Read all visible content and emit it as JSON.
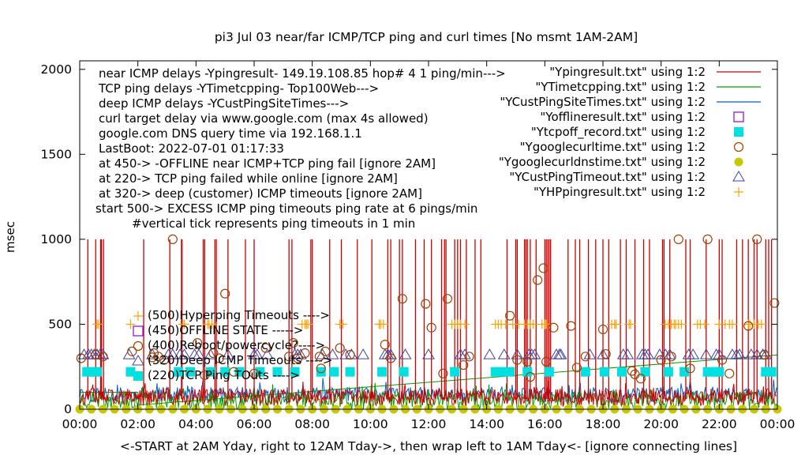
{
  "chart_data": {
    "type": "scatter",
    "title": "pi3 Jul 03  near/far ICMP/TCP ping and curl times [No msmt 1AM-2AM]",
    "xlabel": "<-START at 2AM Yday, right to 12AM Tday->, then wrap left to 1AM Tday<- [ignore connecting lines]",
    "ylabel": "msec",
    "xlim": [
      0,
      24
    ],
    "ylim": [
      0,
      2050
    ],
    "x_ticks": [
      "00:00",
      "02:00",
      "04:00",
      "06:00",
      "08:00",
      "10:00",
      "12:00",
      "14:00",
      "16:00",
      "18:00",
      "20:00",
      "22:00",
      "00:00"
    ],
    "y_ticks": [
      "0",
      "500",
      "1000",
      "1500",
      "2000"
    ],
    "annotations": [
      "near ICMP delays -Ypingresult- 149.19.108.85 hop# 4 1 ping/min--->",
      "TCP ping delays -YTimetcpping- Top100Web--->",
      "deep ICMP delays -YCustPingSiteTimes--->",
      "curl target delay via www.google.com (max 4s allowed)",
      "google.com DNS query time via 192.168.1.1",
      "LastBoot: 2022-07-01 01:17:33",
      "at 450-> -OFFLINE near ICMP+TCP ping fail [ignore 2AM]",
      "at 220-> TCP ping failed while online [ignore 2AM]",
      "at 320-> deep (customer) ICMP timeouts [ignore 2AM]",
      "start 500-> EXCESS ICMP ping timeouts ping rate at 6 pings/min",
      "#vertical tick represents ping timeouts in 1 min"
    ],
    "inner_legend": [
      "(500)Hyperping Timeouts ---->",
      "(450)OFFLINE STATE ----->",
      "(400)Reboot/powercycle?---->",
      "(320)Deep ICMP Timeouts ---->",
      "(220)TCP Ping TOuts ---->"
    ],
    "series": [
      {
        "name": "\"Ypingresult.txt\" using 1:2",
        "color": "#cc0000",
        "style": "line",
        "baseline": [
          20,
          120
        ],
        "spikes": [
          0.28,
          0.55,
          0.72,
          0.75,
          0.82,
          2.2,
          3.1,
          3.5,
          3.52,
          4.25,
          4.3,
          4.65,
          4.7,
          5.1,
          5.7,
          6.0,
          7.2,
          7.3,
          7.95,
          8.0,
          8.6,
          9.0,
          9.55,
          10.05,
          10.6,
          10.7,
          11.0,
          11.1,
          11.55,
          11.85,
          12.1,
          12.45,
          12.55,
          12.6,
          12.9,
          13.0,
          13.1,
          13.3,
          13.6,
          13.8,
          14.7,
          15.0,
          15.05,
          15.3,
          15.35,
          15.4,
          15.5,
          15.7,
          16.0,
          16.05,
          16.1,
          16.15,
          16.2,
          16.8,
          17.05,
          17.2,
          17.5,
          17.75,
          18.0,
          18.2,
          18.6,
          18.8,
          19.1,
          19.4,
          19.6,
          20.05,
          20.1,
          20.3,
          20.85,
          21.0,
          21.55,
          22.0,
          22.1,
          22.6,
          22.8,
          23.0,
          23.2,
          23.3,
          23.6,
          23.7,
          23.8
        ]
      },
      {
        "name": "\"YTimetcpping.txt\" using 1:2",
        "color": "#00a000",
        "style": "line",
        "baseline": [
          0,
          110
        ],
        "trend": {
          "x": [
            0,
            2.0,
            2.05,
            24
          ],
          "y": [
            100,
            100,
            25,
            320
          ]
        }
      },
      {
        "name": "\"YCustPingSiteTimes.txt\" using 1:2",
        "color": "#0060c0",
        "style": "line",
        "baseline": [
          40,
          130
        ]
      },
      {
        "name": "\"Yofflineresult.txt\" using 1:2",
        "color": "#9400d3",
        "style": "open-square",
        "x": [],
        "y": []
      },
      {
        "name": "\"Ytcpoff_record.txt\" using 1:2",
        "color": "#00e0e0",
        "style": "filled-square",
        "y_value": 220,
        "x": [
          0.25,
          0.4,
          0.6,
          1.75,
          3.4,
          3.8,
          4.5,
          5.0,
          5.5,
          6.2,
          6.8,
          7.4,
          8.3,
          8.75,
          9.3,
          10.4,
          11.15,
          12.9,
          14.3,
          14.5,
          14.8,
          15.4,
          16.15,
          17.4,
          18.05,
          18.65,
          19.45,
          20.25,
          20.8,
          21.6,
          21.85,
          22.0,
          23.6,
          23.8
        ]
      },
      {
        "name": "\"Ygooglecurltime.txt\" using 1:2",
        "color": "#a04000",
        "style": "open-circle",
        "x": [
          0.05,
          0.55,
          0.8,
          1.8,
          2.5,
          2.55,
          2.7,
          2.9,
          3.2,
          4.05,
          4.3,
          4.6,
          4.8,
          5.0,
          5.3,
          6.0,
          6.4,
          7.2,
          7.35,
          7.5,
          7.75,
          8.25,
          8.3,
          8.45,
          8.95,
          9.3,
          10.5,
          10.7,
          11.1,
          11.9,
          12.1,
          12.5,
          12.65,
          13.2,
          13.4,
          14.8,
          15.05,
          15.4,
          15.5,
          15.75,
          15.95,
          16.05,
          16.3,
          16.9,
          17.1,
          17.4,
          18.0,
          18.1,
          19.0,
          19.1,
          19.3,
          20.0,
          20.35,
          20.6,
          21.0,
          21.6,
          22.1,
          22.35,
          23.0,
          23.3,
          23.55,
          23.9
        ],
        "y": [
          300,
          320,
          310,
          340,
          305,
          330,
          310,
          290,
          1000,
          390,
          200,
          330,
          300,
          680,
          220,
          210,
          360,
          310,
          390,
          300,
          330,
          310,
          240,
          340,
          360,
          320,
          380,
          300,
          650,
          620,
          480,
          210,
          650,
          260,
          310,
          550,
          290,
          280,
          190,
          760,
          830,
          280,
          480,
          490,
          245,
          310,
          470,
          325,
          225,
          205,
          180,
          290,
          310,
          1000,
          240,
          1000,
          290,
          210,
          490,
          1000,
          320,
          625
        ]
      },
      {
        "name": "\"Ygooglecurldnstime.txt\" using 1:2",
        "color": "#c8c800",
        "style": "filled-circle",
        "y_value": 0
      },
      {
        "name": "\"YCustPingTimeout.txt\" using 1:2",
        "color": "#4040a0",
        "style": "open-triangle",
        "y_value": 320,
        "x": [
          0.15,
          0.3,
          0.4,
          0.5,
          0.6,
          0.7,
          0.8,
          1.7,
          2.5,
          3.05,
          3.2,
          3.45,
          3.6,
          3.95,
          4.1,
          4.5,
          5.1,
          6.0,
          6.1,
          6.45,
          7.4,
          7.5,
          7.6,
          8.35,
          8.7,
          9.15,
          9.35,
          9.75,
          10.5,
          10.6,
          10.7,
          11.2,
          12.0,
          13.1,
          13.25,
          14.1,
          14.6,
          15.05,
          15.45,
          15.55,
          15.65,
          16.4,
          16.5,
          16.55,
          17.55,
          18.0,
          18.7,
          18.85,
          19.35,
          19.45,
          19.55,
          19.95,
          20.15,
          20.3,
          20.95,
          21.1,
          21.55,
          21.9,
          22.0,
          22.45,
          22.6,
          22.7,
          23.1,
          23.3,
          23.5,
          23.6
        ]
      },
      {
        "name": "\"YHPpingresult.txt\" using 1:2",
        "color": "#ffa000",
        "style": "plus",
        "y_value": 500,
        "x": [
          0.6,
          0.65,
          1.75,
          3.55,
          3.6,
          4.4,
          4.45,
          4.55,
          7.65,
          7.75,
          7.8,
          7.85,
          8.95,
          9.05,
          10.3,
          10.35,
          10.45,
          12.8,
          12.9,
          13.0,
          13.1,
          13.25,
          14.3,
          14.4,
          14.5,
          14.65,
          14.9,
          15.1,
          15.3,
          15.4,
          15.5,
          15.6,
          15.9,
          16.0,
          16.05,
          18.3,
          18.4,
          18.45,
          18.9,
          18.95,
          20.15,
          20.25,
          20.35,
          20.45,
          20.5,
          20.6,
          20.7,
          21.25,
          21.35,
          21.5,
          22.0,
          22.2,
          22.35,
          22.45,
          23.0,
          23.05,
          23.2,
          23.35,
          23.45
        ]
      }
    ]
  }
}
